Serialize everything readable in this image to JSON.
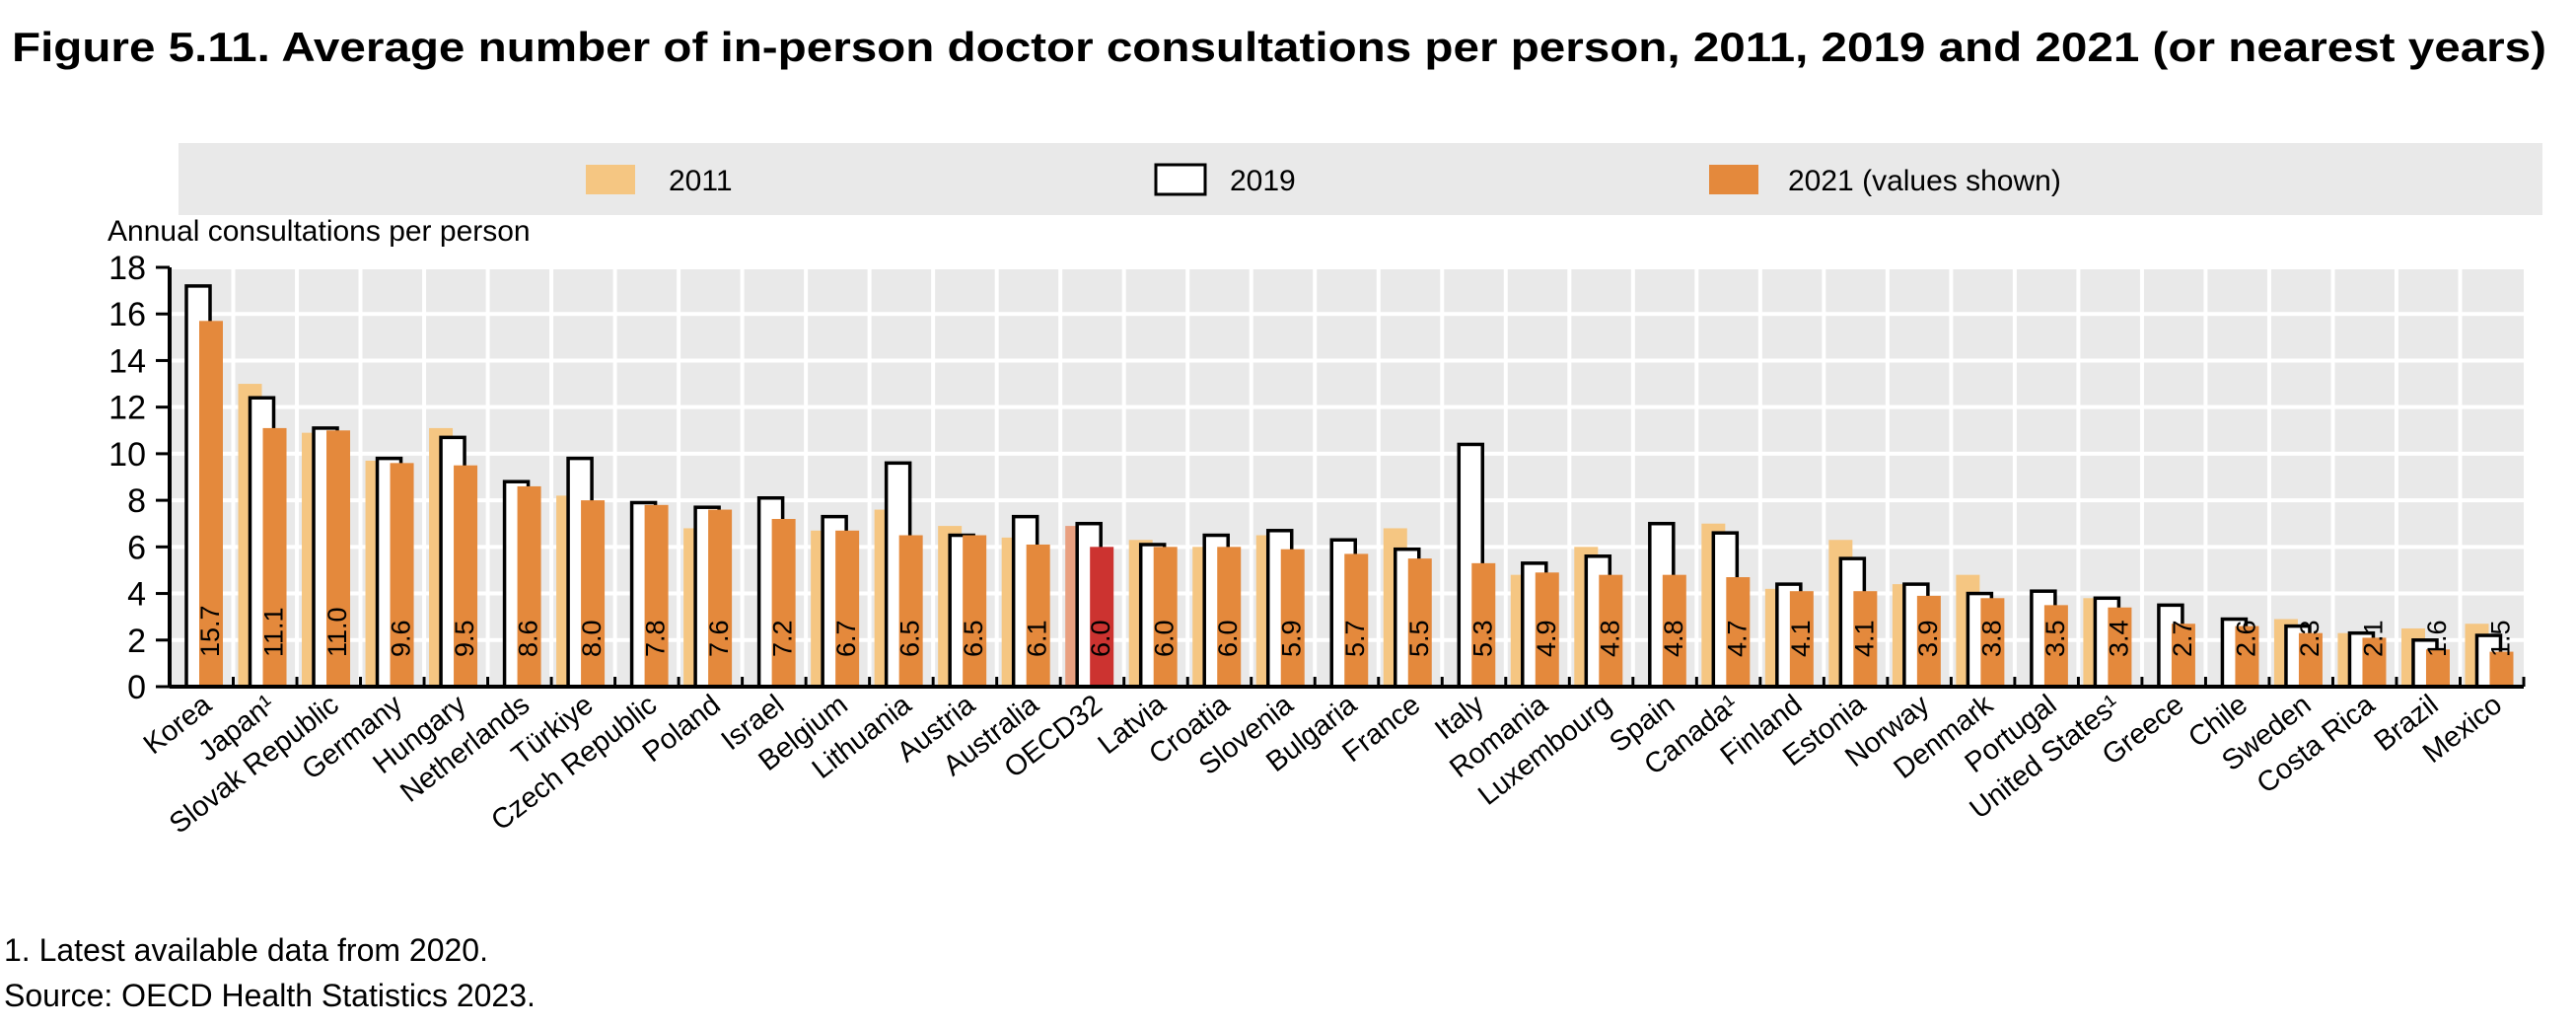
{
  "title": "Figure 5.11. Average number of in-person doctor consultations per person, 2011, 2019 and 2021 (or nearest years)",
  "footnotes": [
    "1. Latest available data from 2020.",
    "Source: OECD Health Statistics 2023."
  ],
  "colors": {
    "s2011": "#F5C682",
    "s2019": "#FFFFFF",
    "s2021": "#E4893C",
    "oecd2011": "#E9A080",
    "oecd2021": "#CC3330",
    "plot_bg": "#E9E9E9",
    "outline": "#000000"
  },
  "chart_data": {
    "type": "bar",
    "ylabel": "Annual consultations per person",
    "ylim": [
      0,
      18
    ],
    "yticks": [
      0,
      2,
      4,
      6,
      8,
      10,
      12,
      14,
      16,
      18
    ],
    "grid": true,
    "legend_position": "top",
    "highlight_category": "OECD32",
    "categories": [
      "Korea",
      "Japan¹",
      "Slovak Republic",
      "Germany",
      "Hungary",
      "Netherlands",
      "Türkiye",
      "Czech Republic",
      "Poland",
      "Israel",
      "Belgium",
      "Lithuania",
      "Austria",
      "Australia",
      "OECD32",
      "Latvia",
      "Croatia",
      "Slovenia",
      "Bulgaria",
      "France",
      "Italy",
      "Romania",
      "Luxembourg",
      "Spain",
      "Canada¹",
      "Finland",
      "Estonia",
      "Norway",
      "Denmark",
      "Portugal",
      "United States¹",
      "Greece",
      "Chile",
      "Sweden",
      "Costa Rica",
      "Brazil",
      "Mexico"
    ],
    "series": [
      {
        "name": "2011",
        "values": [
          null,
          13.0,
          10.9,
          9.7,
          11.1,
          null,
          8.2,
          null,
          6.8,
          null,
          6.7,
          7.6,
          6.9,
          6.4,
          6.9,
          6.3,
          6.0,
          6.5,
          null,
          6.8,
          null,
          4.8,
          6.0,
          null,
          7.0,
          4.2,
          6.3,
          4.4,
          4.8,
          null,
          3.8,
          null,
          null,
          2.9,
          2.3,
          2.5,
          2.7
        ]
      },
      {
        "name": "2019",
        "values": [
          17.2,
          12.4,
          11.1,
          9.8,
          10.7,
          8.8,
          9.8,
          7.9,
          7.7,
          8.1,
          7.3,
          9.6,
          6.5,
          7.3,
          7.0,
          6.1,
          6.5,
          6.7,
          6.3,
          5.9,
          10.4,
          5.3,
          5.6,
          7.0,
          6.6,
          4.4,
          5.5,
          4.4,
          4.0,
          4.1,
          3.8,
          3.5,
          2.9,
          2.6,
          2.3,
          2.0,
          2.2
        ]
      },
      {
        "name": "2021 (values shown)",
        "values": [
          15.7,
          11.1,
          11.0,
          9.6,
          9.5,
          8.6,
          8.0,
          7.8,
          7.6,
          7.2,
          6.7,
          6.5,
          6.5,
          6.1,
          6.0,
          6.0,
          6.0,
          5.9,
          5.7,
          5.5,
          5.3,
          4.9,
          4.8,
          4.8,
          4.7,
          4.1,
          4.1,
          3.9,
          3.8,
          3.5,
          3.4,
          2.7,
          2.6,
          2.3,
          2.1,
          1.6,
          1.5
        ]
      }
    ],
    "data_labels": [
      "15.7",
      "11.1",
      "11.0",
      "9.6",
      "9.5",
      "8.6",
      "8.0",
      "7.8",
      "7.6",
      "7.2",
      "6.7",
      "6.5",
      "6.5",
      "6.1",
      "6.0",
      "6.0",
      "6.0",
      "5.9",
      "5.7",
      "5.5",
      "5.3",
      "4.9",
      "4.8",
      "4.8",
      "4.7",
      "4.1",
      "4.1",
      "3.9",
      "3.8",
      "3.5",
      "3.4",
      "2.7",
      "2.6",
      "2.3",
      "2.1",
      "1.6",
      "1.5"
    ]
  }
}
